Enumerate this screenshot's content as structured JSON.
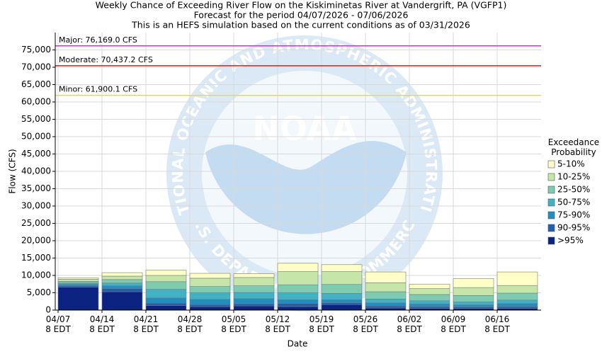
{
  "chart_data": {
    "type": "stacked-bar",
    "title": "Weekly Chance of Exceeding River Flow on the Kiskiminetas River at Vandergrift, PA (VGFP1)",
    "subtitle": "Forecast for the period 04/07/2026 - 07/06/2026",
    "note": "This is an HEFS simulation based on the current conditions as of 03/31/2026",
    "x_label": "Date",
    "y_label": "Flow (CFS)",
    "legend_title": "Exceedance Probability",
    "watermark": {
      "name": "NOAA",
      "ring_top": "NATIONAL OCEANIC AND ATMOSPHERIC ADMINISTRATION",
      "ring_bottom": "U.S. DEPARTMENT OF COMMERCE"
    },
    "categories": [
      "04/07 8 EDT",
      "04/14 8 EDT",
      "04/21 8 EDT",
      "04/28 8 EDT",
      "05/05 8 EDT",
      "05/12 8 EDT",
      "05/19 8 EDT",
      "05/26 8 EDT",
      "06/02 8 EDT",
      "06/09 8 EDT",
      "06/16 8 EDT"
    ],
    "ylim": [
      0,
      80000
    ],
    "yticks": [
      0,
      {
        "value": 5000,
        "label": "5,000"
      },
      {
        "value": 10000,
        "label": "10,000"
      },
      {
        "value": 15000,
        "label": "15,000"
      },
      {
        "value": 20000,
        "label": "20,000"
      },
      {
        "value": 25000,
        "label": "25,000"
      },
      {
        "value": 30000,
        "label": "30,000"
      },
      {
        "value": 35000,
        "label": "35,000"
      },
      {
        "value": 40000,
        "label": "40,000"
      },
      {
        "value": 45000,
        "label": "45,000"
      },
      {
        "value": 50000,
        "label": "50,000"
      },
      {
        "value": 55000,
        "label": "55,000"
      },
      {
        "value": 60000,
        "label": "60,000"
      },
      {
        "value": 65000,
        "label": "65,000"
      },
      {
        "value": 70000,
        "label": "70,000"
      },
      {
        "value": 75000,
        "label": "75,000"
      }
    ],
    "grid": true,
    "thresholds": [
      {
        "label": "Major: 76,169.0 CFS",
        "value": 76169.0,
        "color": "#cc33cc"
      },
      {
        "label": "Moderate: 70,437.2 CFS",
        "value": 70437.2,
        "color": "#cc2222"
      },
      {
        "label": "Minor: 61,900.1 CFS",
        "value": 61900.1,
        "color": "#dddd66"
      }
    ],
    "series": [
      {
        "name": "5-10%",
        "color": "#ffffc8",
        "values": [
          400,
          1000,
          1500,
          1400,
          1100,
          2400,
          2000,
          3100,
          1300,
          2600,
          3900
        ]
      },
      {
        "name": "10-25%",
        "color": "#c6e5a9",
        "values": [
          600,
          1000,
          1800,
          2400,
          2400,
          3800,
          3700,
          2600,
          1700,
          2300,
          2200
        ]
      },
      {
        "name": "25-50%",
        "color": "#7fcbb0",
        "values": [
          500,
          1000,
          2200,
          1800,
          1900,
          2300,
          2600,
          2100,
          1800,
          1800,
          2000
        ]
      },
      {
        "name": "50-75%",
        "color": "#41b1c4",
        "values": [
          400,
          800,
          2500,
          1900,
          1800,
          2000,
          1800,
          1100,
          900,
          900,
          1000
        ]
      },
      {
        "name": "75-90%",
        "color": "#1f8fc0",
        "values": [
          400,
          800,
          1500,
          1500,
          1500,
          1100,
          900,
          900,
          800,
          600,
          900
        ]
      },
      {
        "name": "90-95%",
        "color": "#2260ae",
        "values": [
          400,
          900,
          700,
          600,
          600,
          900,
          500,
          600,
          500,
          400,
          500
        ]
      },
      {
        "name": ">95%",
        "color": "#0c2382",
        "values": [
          6600,
          5300,
          1300,
          1000,
          1200,
          1000,
          1600,
          600,
          500,
          500,
          500
        ]
      }
    ]
  }
}
